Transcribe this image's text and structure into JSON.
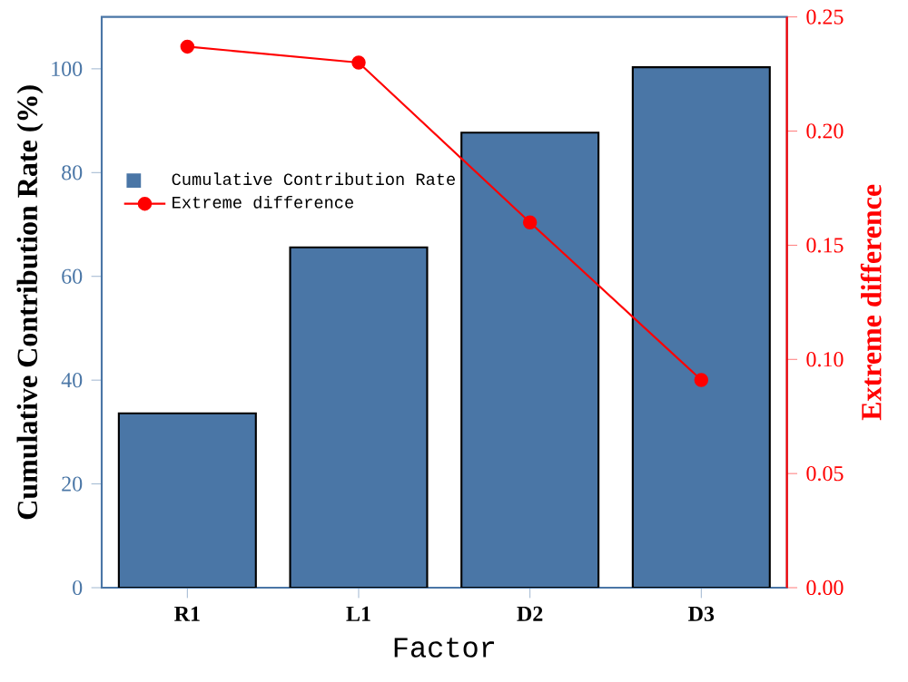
{
  "chart_data": {
    "type": "bar",
    "categories": [
      "R1",
      "L1",
      "D2",
      "D3"
    ],
    "xlabel": "Factor",
    "ylabel": "Cumulative Contribution Rate (%)",
    "y2label": "Extreme difference",
    "series": [
      {
        "name": "Cumulative Contribution Rate",
        "color": "#4a76a6",
        "values": [
          33.6,
          65.6,
          87.7,
          100.3
        ]
      },
      {
        "name": "Extreme difference",
        "type": "line",
        "axis": "y2",
        "color": "#ff0000",
        "marker": "circle",
        "values": [
          0.237,
          0.23,
          0.16,
          0.091
        ]
      }
    ],
    "ylim": [
      0,
      110
    ],
    "yticks": [
      0,
      20,
      40,
      60,
      80,
      100
    ],
    "y2lim": [
      0,
      0.25
    ],
    "y2ticks": [
      {
        "value": 0,
        "label": "0.00"
      },
      {
        "value": 0.05,
        "label": "0.05"
      },
      {
        "value": 0.1,
        "label": "0.10"
      },
      {
        "value": 0.15,
        "label": "0.15"
      },
      {
        "value": 0.2,
        "label": "0.20"
      },
      {
        "value": 0.25,
        "label": "0.25"
      }
    ],
    "legend": "top left"
  }
}
